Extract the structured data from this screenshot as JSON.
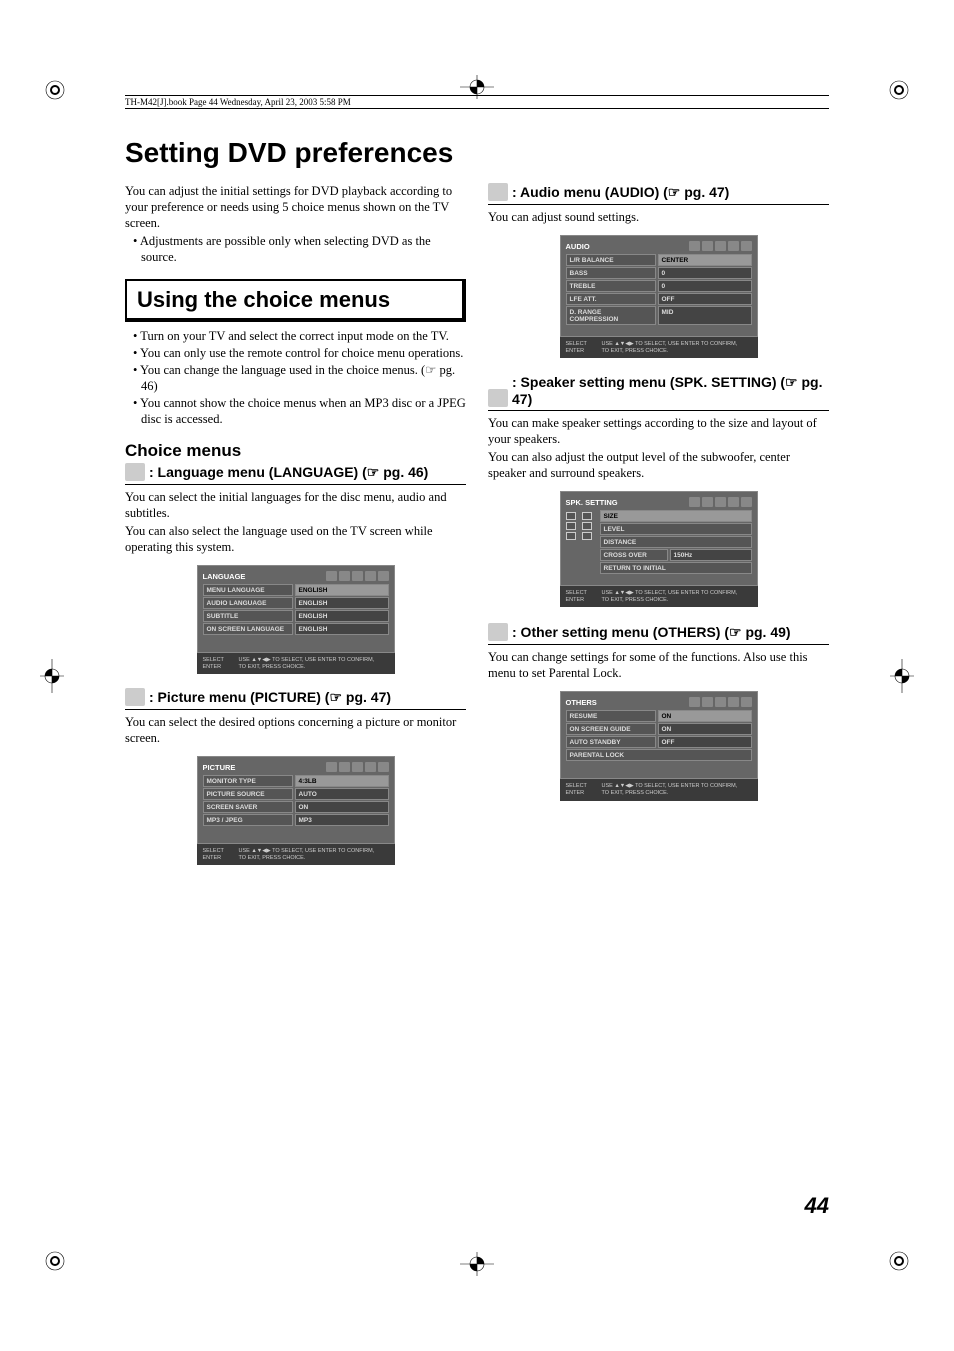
{
  "header_line": "TH-M42[J].book  Page 44  Wednesday, April 23, 2003  5:58 PM",
  "page_title": "Setting DVD preferences",
  "intro": "You can adjust the initial settings for DVD playback according to your preference or needs using 5 choice menus shown on the TV screen.",
  "intro_bullet": "Adjustments are possible only when selecting DVD as the source.",
  "using_heading": "Using the choice menus",
  "using_bullets": [
    "Turn on your TV and select the correct input mode on the TV.",
    "You can only use the remote control for choice menu operations.",
    "You can change the language used in the choice menus. (☞ pg. 46)",
    "You cannot show the choice menus when an MP3 disc or a JPEG disc is accessed."
  ],
  "choice_heading": "Choice menus",
  "lang": {
    "title": ": Language menu (LANGUAGE) (☞ pg. 46)",
    "desc1": "You can select the initial languages for the disc menu, audio and subtitles.",
    "desc2": "You can also select the language used on the TV screen while operating this system.",
    "menu_title": "LANGUAGE",
    "rows": [
      {
        "label": "MENU LANGUAGE",
        "value": "ENGLISH",
        "hl": true
      },
      {
        "label": "AUDIO LANGUAGE",
        "value": "ENGLISH"
      },
      {
        "label": "SUBTITLE",
        "value": "ENGLISH"
      },
      {
        "label": "ON SCREEN LANGUAGE",
        "value": "ENGLISH"
      }
    ]
  },
  "pict": {
    "title": ": Picture menu (PICTURE) (☞ pg. 47)",
    "desc": "You can select the desired options concerning a picture or monitor screen.",
    "menu_title": "PICTURE",
    "rows": [
      {
        "label": "MONITOR TYPE",
        "value": "4:3LB",
        "hl": true
      },
      {
        "label": "PICTURE SOURCE",
        "value": "AUTO"
      },
      {
        "label": "SCREEN SAVER",
        "value": "ON"
      },
      {
        "label": "MP3 / JPEG",
        "value": "MP3"
      }
    ]
  },
  "audio": {
    "title": ": Audio menu (AUDIO) (☞ pg. 47)",
    "desc": "You can adjust sound settings.",
    "menu_title": "AUDIO",
    "rows": [
      {
        "label": "L/R BALANCE",
        "value": "CENTER",
        "hl": true
      },
      {
        "label": "BASS",
        "value": "0"
      },
      {
        "label": "TREBLE",
        "value": "0"
      },
      {
        "label": "LFE ATT.",
        "value": "OFF"
      },
      {
        "label": "D. RANGE COMPRESSION",
        "value": "MID"
      }
    ]
  },
  "spk": {
    "title": ": Speaker setting menu (SPK. SETTING) (☞ pg. 47)",
    "desc1": "You can make speaker settings according to the size and layout of your speakers.",
    "desc2": "You can also adjust the output level of the subwoofer, center speaker and surround speakers.",
    "menu_title": "SPK. SETTING",
    "rows": [
      {
        "label": "SIZE",
        "hl": true
      },
      {
        "label": "LEVEL"
      },
      {
        "label": "DISTANCE"
      },
      {
        "label": "CROSS OVER",
        "value": "150Hz"
      },
      {
        "label": "RETURN TO INITIAL"
      }
    ]
  },
  "other": {
    "title": ": Other setting menu (OTHERS) (☞ pg. 49)",
    "desc": "You can change settings for some of the functions. Also use this menu to set Parental Lock.",
    "menu_title": "OTHERS",
    "rows": [
      {
        "label": "RESUME",
        "value": "ON",
        "hl": true
      },
      {
        "label": "ON SCREEN GUIDE",
        "value": "ON"
      },
      {
        "label": "AUTO STANDBY",
        "value": "OFF"
      },
      {
        "label": "PARENTAL LOCK"
      }
    ]
  },
  "footer": {
    "left": "SELECT\nENTER",
    "right": "USE ▲▼◀▶ TO SELECT,  USE ENTER TO CONFIRM,\nTO EXIT, PRESS CHOICE."
  },
  "page_number": "44"
}
